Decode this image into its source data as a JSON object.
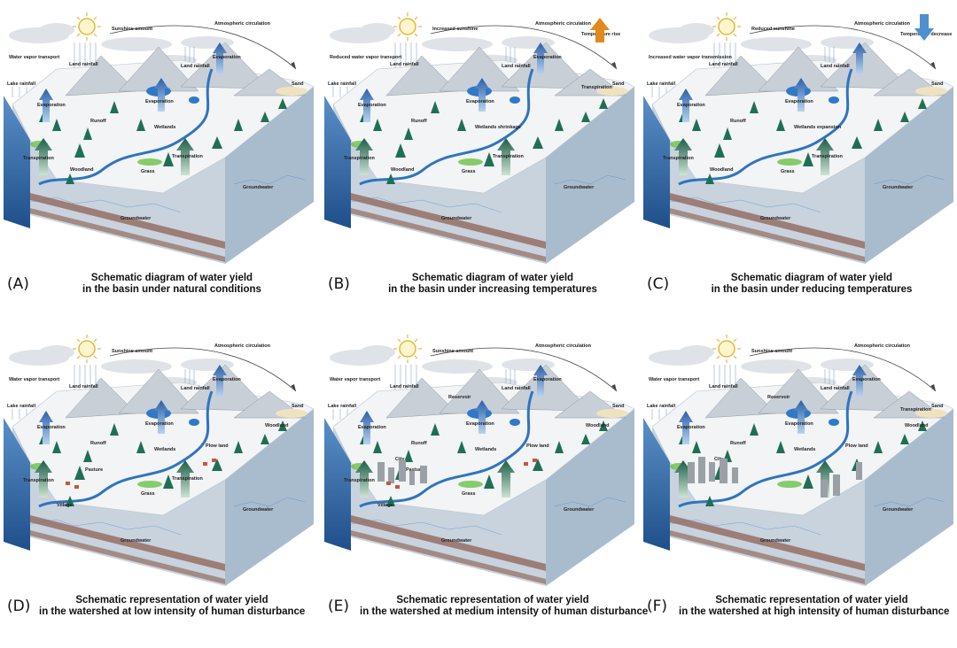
{
  "panels": [
    {
      "letter": "(A)",
      "caption_1": "Schematic diagram of water yield",
      "caption_2": "in the basin under natural conditions",
      "sun_label": "Sunshine amount",
      "atmo_label": "Atmospheric circulation",
      "temp_label": "",
      "vapor_label": "Water vapor transport",
      "land_rainfall": "Land rainfall",
      "land_rainfall_2": "Land rainfall",
      "lake_rainfall": "Lake rainfall",
      "evap_1": "Evaporation",
      "evap_2": "Evaporation",
      "evap_3": "Evaporation",
      "sand": "Sand",
      "runoff": "Runoff",
      "wetlands": "Wetlands",
      "transp_1": "Transpiration",
      "transp_2": "Transpiration",
      "transp_3": "",
      "woodland": "Woodland",
      "grass": "Grass",
      "groundwater_1": "Groundwater",
      "groundwater_2": "Groundwater",
      "reservoir": "",
      "plow_land": "",
      "pasture": "",
      "village": "",
      "city": "",
      "woodland_2": ""
    },
    {
      "letter": "(B)",
      "caption_1": "Schematic diagram of water yield",
      "caption_2": "in the basin under increasing temperatures",
      "sun_label": "Increased sunshine",
      "atmo_label": "Atmospheric circulation",
      "temp_label": "Temperature rise",
      "vapor_label": "Reduced water vapor transport",
      "land_rainfall": "Land rainfall",
      "land_rainfall_2": "Land rainfall",
      "lake_rainfall": "Lake rainfall",
      "evap_1": "Evaporation",
      "evap_2": "Evaporation",
      "evap_3": "Evaporation",
      "sand": "Sand",
      "runoff": "Runoff",
      "wetlands": "Wetlands shrinkage",
      "transp_1": "Transpiration",
      "transp_2": "Transpiration",
      "transp_3": "Transpiration",
      "woodland": "Woodland",
      "grass": "Grass",
      "groundwater_1": "Groundwater",
      "groundwater_2": "Groundwater",
      "reservoir": "",
      "plow_land": "",
      "pasture": "",
      "village": "",
      "city": "",
      "woodland_2": ""
    },
    {
      "letter": "(C)",
      "caption_1": "Schematic diagram of water yield",
      "caption_2": "in the basin under reducing temperatures",
      "sun_label": "Reduced sunshine",
      "atmo_label": "Atmospheric circulation",
      "temp_label": "Temperature decrease",
      "vapor_label": "Increased water vapor transmission",
      "land_rainfall": "Land rainfall",
      "land_rainfall_2": "Land rainfall",
      "lake_rainfall": "Lake rainfall",
      "evap_1": "Evaporation",
      "evap_2": "Evaporation",
      "evap_3": "",
      "sand": "Sand",
      "runoff": "Runoff",
      "wetlands": "Wetlands expansion",
      "transp_1": "Transpiration",
      "transp_2": "Transpiration",
      "transp_3": "",
      "woodland": "Woodland",
      "grass": "Grass",
      "groundwater_1": "Groundwater",
      "groundwater_2": "Groundwater",
      "reservoir": "",
      "plow_land": "",
      "pasture": "",
      "village": "",
      "city": "",
      "woodland_2": ""
    },
    {
      "letter": "(D)",
      "caption_1": "Schematic representation of water yield",
      "caption_2": "in the watershed at low intensity of human disturbance",
      "sun_label": "Sunshine amount",
      "atmo_label": "Atmospheric circulation",
      "temp_label": "",
      "vapor_label": "Water vapor transport",
      "land_rainfall": "Land rainfall",
      "land_rainfall_2": "Land rainfall",
      "lake_rainfall": "Lake rainfall",
      "evap_1": "Evaporation",
      "evap_2": "Evaporation",
      "evap_3": "Evaporation",
      "sand": "Sand",
      "runoff": "Runoff",
      "wetlands": "Wetlands",
      "transp_1": "Transpiration",
      "transp_2": "Transpiration",
      "transp_3": "",
      "woodland": "",
      "grass": "Grass",
      "groundwater_1": "Groundwater",
      "groundwater_2": "Groundwater",
      "reservoir": "",
      "plow_land": "Plow land",
      "pasture": "Pasture",
      "village": "Village",
      "city": "",
      "woodland_2": "Woodland"
    },
    {
      "letter": "(E)",
      "caption_1": "Schematic representation of water yield",
      "caption_2": "in the watershed at medium intensity of human disturbance",
      "sun_label": "Sunshine amount",
      "atmo_label": "Atmospheric circulation",
      "temp_label": "",
      "vapor_label": "Water vapor transport",
      "land_rainfall": "Land rainfall",
      "land_rainfall_2": "Land rainfall",
      "lake_rainfall": "Lake rainfall",
      "evap_1": "Evaporation",
      "evap_2": "Evaporation",
      "evap_3": "Evaporation",
      "sand": "Sand",
      "runoff": "Runoff",
      "wetlands": "Wetlands",
      "transp_1": "Transpiration",
      "transp_2": "",
      "transp_3": "",
      "woodland": "",
      "grass": "Grass",
      "groundwater_1": "Groundwater",
      "groundwater_2": "Groundwater",
      "reservoir": "Reservoir",
      "plow_land": "Plow land",
      "pasture": "Pasture",
      "village": "Village",
      "city": "City",
      "woodland_2": "Woodland"
    },
    {
      "letter": "(F)",
      "caption_1": "Schematic representation of water yield",
      "caption_2": "in the watershed at high intensity of human disturbance",
      "sun_label": "Sunshine amount",
      "atmo_label": "Atmospheric circulation",
      "temp_label": "",
      "vapor_label": "Water vapor transport",
      "land_rainfall": "Land rainfall",
      "land_rainfall_2": "Land rainfall",
      "lake_rainfall": "Lake rainfall",
      "evap_1": "Evaporation",
      "evap_2": "Evaporation",
      "evap_3": "Evaporation",
      "sand": "Sand",
      "runoff": "Runoff",
      "wetlands": "Wetlands",
      "transp_1": "",
      "transp_2": "",
      "transp_3": "Transpiration",
      "woodland": "",
      "grass": "",
      "groundwater_1": "Groundwater",
      "groundwater_2": "Groundwater",
      "reservoir": "Reservoir",
      "plow_land": "Plow land",
      "pasture": "",
      "village": "",
      "city": "City",
      "woodland_2": "Woodland"
    }
  ]
}
